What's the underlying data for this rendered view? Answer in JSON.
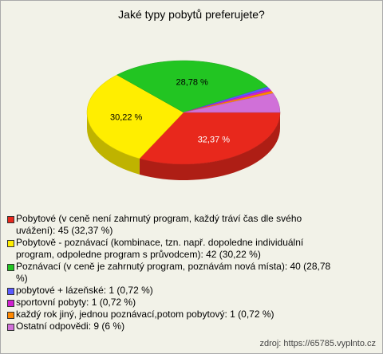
{
  "chart_data": {
    "type": "pie",
    "title": "Jaké typy pobytů preferujete?",
    "categories": [
      "Pobytové (v ceně není zahrnutý program, každý tráví čas dle svého uvážení): 45 (32,37 %)",
      "Pobytově - poznávací (kombinace, tzn. např. dopoledne individuální program, odpoledne program s průvodcem): 42 (30,22 %)",
      "Poznávací (v ceně je zahrnutý program, poznávám nová místa): 40 (28,78 %)",
      "pobytové + lázeňské: 1 (0,72 %)",
      "sportovní pobyty: 1 (0,72 %)",
      "každý rok jiný, jednou poznávací,potom pobytový: 1 (0,72 %)",
      "Ostatní odpovědi: 9 (6 %)"
    ],
    "values": [
      32.37,
      30.22,
      28.78,
      0.72,
      0.72,
      0.72,
      6
    ],
    "value_labels": [
      "32,37 %",
      "30,22 %",
      "28,78 %",
      null,
      null,
      null,
      null
    ],
    "colors": [
      "#e8281c",
      "#ffee00",
      "#22c522",
      "#5a5aff",
      "#d020d0",
      "#ff8800",
      "#d070d8"
    ],
    "source": "zdroj: https://65785.vyplnto.cz"
  }
}
